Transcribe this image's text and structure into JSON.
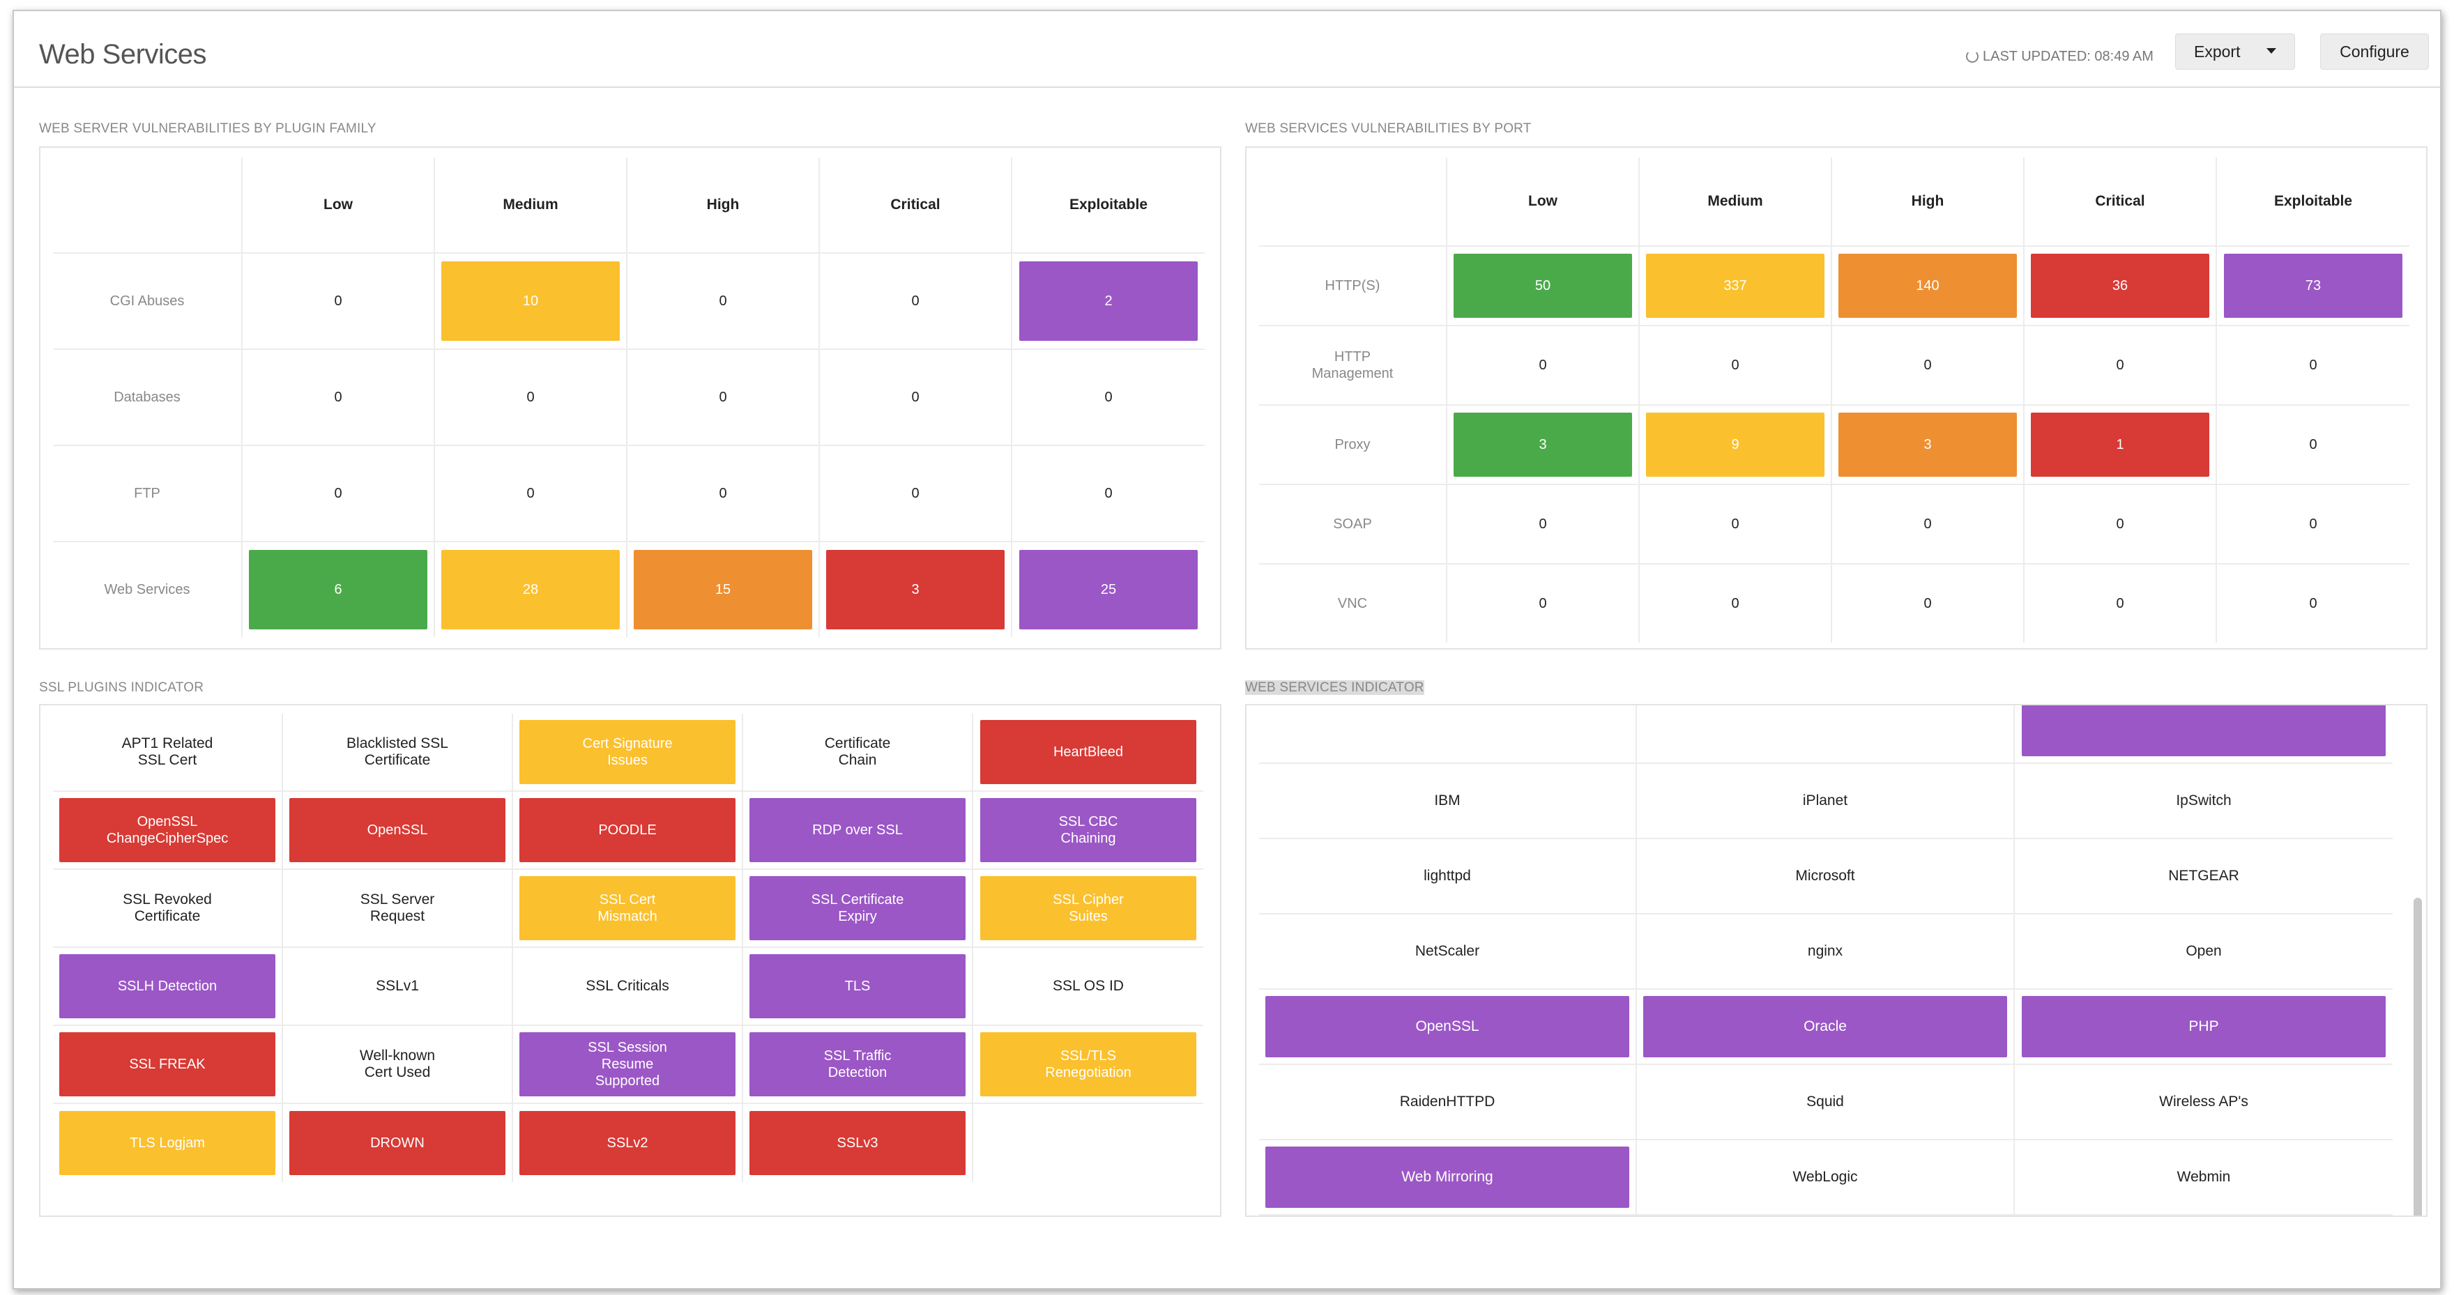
{
  "colors": {
    "low": "#4aaa4a",
    "medium": "#fbc02d",
    "high": "#ee8f32",
    "critical": "#d83a35",
    "exploitable": "#9b57c6"
  },
  "header": {
    "title": "Web Services",
    "last_updated": "LAST UPDATED: 08:49 AM",
    "refresh_icon": "refresh-icon",
    "export_label": "Export",
    "configure_label": "Configure"
  },
  "plugin_family": {
    "title": "WEB SERVER VULNERABILITIES BY PLUGIN FAMILY",
    "columns": [
      "Low",
      "Medium",
      "High",
      "Critical",
      "Exploitable"
    ],
    "rows": [
      {
        "label": "CGI Abuses",
        "values": [
          "0",
          "10",
          "0",
          "0",
          "2"
        ],
        "fill": [
          null,
          "medium",
          null,
          null,
          "exploitable"
        ]
      },
      {
        "label": "Databases",
        "values": [
          "0",
          "0",
          "0",
          "0",
          "0"
        ],
        "fill": [
          null,
          null,
          null,
          null,
          null
        ]
      },
      {
        "label": "FTP",
        "values": [
          "0",
          "0",
          "0",
          "0",
          "0"
        ],
        "fill": [
          null,
          null,
          null,
          null,
          null
        ]
      },
      {
        "label": "Web Services",
        "values": [
          "6",
          "28",
          "15",
          "3",
          "25"
        ],
        "fill": [
          "low",
          "medium",
          "high",
          "critical",
          "exploitable"
        ]
      }
    ]
  },
  "by_port": {
    "title": "WEB SERVICES VULNERABILITIES BY PORT",
    "columns": [
      "Low",
      "Medium",
      "High",
      "Critical",
      "Exploitable"
    ],
    "rows": [
      {
        "label": "HTTP(S)",
        "values": [
          "50",
          "337",
          "140",
          "36",
          "73"
        ],
        "fill": [
          "low",
          "medium",
          "high",
          "critical",
          "exploitable"
        ]
      },
      {
        "label": "HTTP\nManagement",
        "values": [
          "0",
          "0",
          "0",
          "0",
          "0"
        ],
        "fill": [
          null,
          null,
          null,
          null,
          null
        ]
      },
      {
        "label": "Proxy",
        "values": [
          "3",
          "9",
          "3",
          "1",
          "0"
        ],
        "fill": [
          "low",
          "medium",
          "high",
          "critical",
          null
        ]
      },
      {
        "label": "SOAP",
        "values": [
          "0",
          "0",
          "0",
          "0",
          "0"
        ],
        "fill": [
          null,
          null,
          null,
          null,
          null
        ]
      },
      {
        "label": "VNC",
        "values": [
          "0",
          "0",
          "0",
          "0",
          "0"
        ],
        "fill": [
          null,
          null,
          null,
          null,
          null
        ]
      }
    ]
  },
  "ssl_indicator": {
    "title": "SSL PLUGINS INDICATOR",
    "items": [
      {
        "label": "APT1 Related\nSSL Cert",
        "fill": null
      },
      {
        "label": "Blacklisted SSL\nCertificate",
        "fill": null
      },
      {
        "label": "Cert Signature\nIssues",
        "fill": "medium"
      },
      {
        "label": "Certificate\nChain",
        "fill": null
      },
      {
        "label": "HeartBleed",
        "fill": "critical"
      },
      {
        "label": "OpenSSL\nChangeCipherSpec",
        "fill": "critical"
      },
      {
        "label": "OpenSSL",
        "fill": "critical"
      },
      {
        "label": "POODLE",
        "fill": "critical"
      },
      {
        "label": "RDP over SSL",
        "fill": "exploitable"
      },
      {
        "label": "SSL CBC\nChaining",
        "fill": "exploitable"
      },
      {
        "label": "SSL Revoked\nCertificate",
        "fill": null
      },
      {
        "label": "SSL Server\nRequest",
        "fill": null
      },
      {
        "label": "SSL Cert\nMismatch",
        "fill": "medium"
      },
      {
        "label": "SSL Certificate\nExpiry",
        "fill": "exploitable"
      },
      {
        "label": "SSL Cipher\nSuites",
        "fill": "medium"
      },
      {
        "label": "SSLH Detection",
        "fill": "exploitable"
      },
      {
        "label": "SSLv1",
        "fill": null
      },
      {
        "label": "SSL Criticals",
        "fill": null
      },
      {
        "label": "TLS",
        "fill": "exploitable"
      },
      {
        "label": "SSL OS ID",
        "fill": null
      },
      {
        "label": "SSL FREAK",
        "fill": "critical"
      },
      {
        "label": "Well-known\nCert Used",
        "fill": null
      },
      {
        "label": "SSL Session\nResume\nSupported",
        "fill": "exploitable"
      },
      {
        "label": "SSL Traffic\nDetection",
        "fill": "exploitable"
      },
      {
        "label": "SSL/TLS\nRenegotiation",
        "fill": "medium"
      },
      {
        "label": "TLS Logjam",
        "fill": "medium"
      },
      {
        "label": "DROWN",
        "fill": "critical"
      },
      {
        "label": "SSLv2",
        "fill": "critical"
      },
      {
        "label": "SSLv3",
        "fill": "critical"
      },
      {
        "label": "",
        "fill": null
      }
    ]
  },
  "ws_indicator": {
    "title": "WEB SERVICES INDICATOR",
    "items": [
      {
        "label": "",
        "fill": null
      },
      {
        "label": "",
        "fill": null
      },
      {
        "label": "",
        "fill": "exploitable"
      },
      {
        "label": "IBM",
        "fill": null
      },
      {
        "label": "iPlanet",
        "fill": null
      },
      {
        "label": "IpSwitch",
        "fill": null
      },
      {
        "label": "lighttpd",
        "fill": null
      },
      {
        "label": "Microsoft",
        "fill": null
      },
      {
        "label": "NETGEAR",
        "fill": null
      },
      {
        "label": "NetScaler",
        "fill": null
      },
      {
        "label": "nginx",
        "fill": null
      },
      {
        "label": "Open",
        "fill": null
      },
      {
        "label": "OpenSSL",
        "fill": "exploitable"
      },
      {
        "label": "Oracle",
        "fill": "exploitable"
      },
      {
        "label": "PHP",
        "fill": "exploitable"
      },
      {
        "label": "RaidenHTTPD",
        "fill": null
      },
      {
        "label": "Squid",
        "fill": null
      },
      {
        "label": "Wireless AP's",
        "fill": null
      },
      {
        "label": "Web Mirroring",
        "fill": "exploitable"
      },
      {
        "label": "WebLogic",
        "fill": null
      },
      {
        "label": "Webmin",
        "fill": null
      }
    ]
  }
}
